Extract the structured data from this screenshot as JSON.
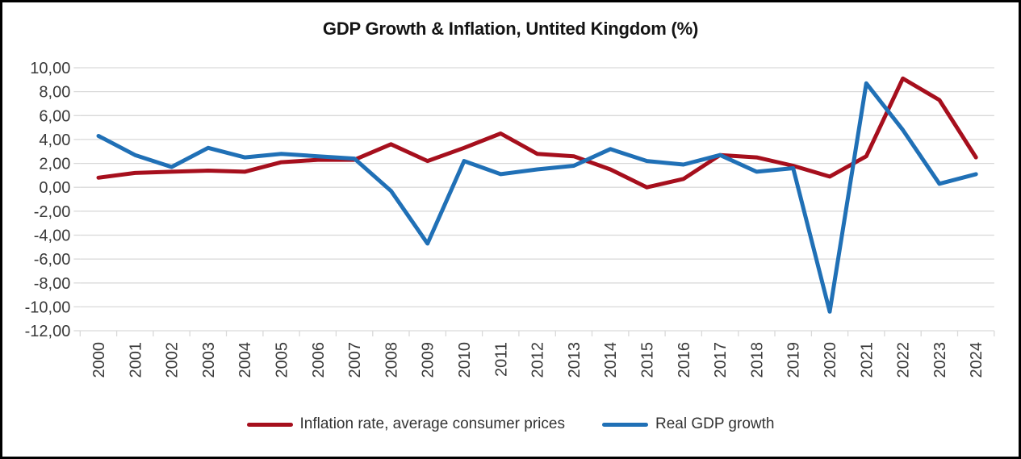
{
  "chart_data": {
    "type": "line",
    "title": "GDP Growth & Inflation, Untited Kingdom (%)",
    "categories": [
      "2000",
      "2001",
      "2002",
      "2003",
      "2004",
      "2005",
      "2006",
      "2007",
      "2008",
      "2009",
      "2010",
      "2011",
      "2012",
      "2013",
      "2014",
      "2015",
      "2016",
      "2017",
      "2018",
      "2019",
      "2020",
      "2021",
      "2022",
      "2023",
      "2024"
    ],
    "series": [
      {
        "name": "Inflation rate, average consumer prices",
        "color": "#a60f1d",
        "values": [
          0.8,
          1.2,
          1.3,
          1.4,
          1.3,
          2.1,
          2.3,
          2.3,
          3.6,
          2.2,
          3.3,
          4.5,
          2.8,
          2.6,
          1.5,
          0.0,
          0.7,
          2.7,
          2.5,
          1.8,
          0.9,
          2.6,
          9.1,
          7.3,
          2.5
        ]
      },
      {
        "name": "Real GDP growth",
        "color": "#2070b6",
        "values": [
          4.3,
          2.7,
          1.7,
          3.3,
          2.5,
          2.8,
          2.6,
          2.4,
          -0.3,
          -4.7,
          2.2,
          1.1,
          1.5,
          1.8,
          3.2,
          2.2,
          1.9,
          2.7,
          1.3,
          1.6,
          -10.4,
          8.7,
          4.8,
          0.3,
          1.1
        ]
      }
    ],
    "ylim": [
      -12,
      10
    ],
    "y_ticks": [
      10,
      8,
      6,
      4,
      2,
      0,
      -2,
      -4,
      -6,
      -8,
      -10,
      -12
    ],
    "y_tick_labels": [
      "10,00",
      "8,00",
      "6,00",
      "4,00",
      "2,00",
      "0,00",
      "-2,00",
      "-4,00",
      "-6,00",
      "-8,00",
      "-10,00",
      "-12,00"
    ],
    "grid": true,
    "legend_position": "bottom",
    "colors": {
      "gridline": "#d9d9d9",
      "axis_text": "#3a3a3a",
      "title_text": "#141414",
      "background": "#ffffff",
      "frame": "#000000"
    }
  }
}
